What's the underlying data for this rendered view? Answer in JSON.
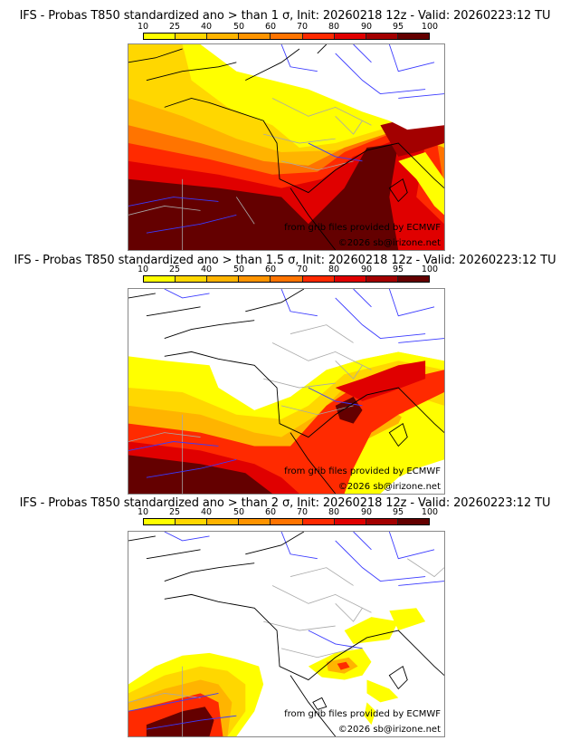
{
  "panels": [
    {
      "title": "IFS - Probas T850  standardized ano > than 1 σ, Init: 20260218 12z - Valid: 20260223:12 TU",
      "threshold_sigma": 1,
      "credit_source": "from grib files provided by ECMWF",
      "credit_copyright": "©2026 sb@irizone.net"
    },
    {
      "title": "IFS - Probas T850  standardized ano > than 1.5 σ, Init: 20260218 12z - Valid: 20260223:12 TU",
      "threshold_sigma": 1.5,
      "credit_source": "from grib files provided by ECMWF",
      "credit_copyright": "©2026 sb@irizone.net"
    },
    {
      "title": "IFS - Probas T850  standardized ano > than 2 σ, Init: 20260218 12z - Valid: 20260223:12 TU",
      "threshold_sigma": 2,
      "credit_source": "from grib files provided by ECMWF",
      "credit_copyright": "©2026 sb@irizone.net"
    }
  ],
  "colorbar": {
    "ticks": [
      "10",
      "25",
      "40",
      "50",
      "60",
      "70",
      "80",
      "90",
      "95",
      "100"
    ],
    "colors": [
      "#ffff00",
      "#ffd700",
      "#ffb400",
      "#ff9400",
      "#ff7400",
      "#ff2a00",
      "#e00000",
      "#a30000",
      "#640000"
    ]
  },
  "map_colors": {
    "coast": "#000000",
    "rivers": "#3a3aff",
    "borders": "#a8a8a8",
    "frame": "#888888"
  }
}
